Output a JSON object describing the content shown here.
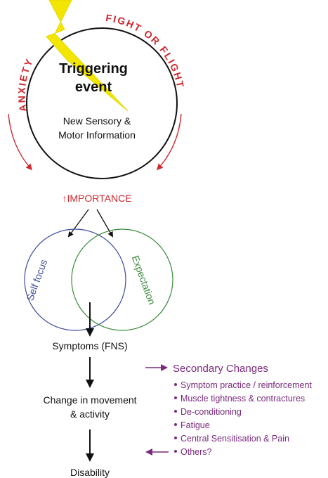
{
  "colors": {
    "black": "#111111",
    "red": "#d0282f",
    "yellow": "#f2e600",
    "blue": "#3d4b9a",
    "green": "#3a8a3a",
    "purple": "#7a2a7d"
  },
  "trigger": {
    "line1": "Triggering",
    "line2": "event",
    "sub1": "New Sensory &",
    "sub2": "Motor Information"
  },
  "arcs": {
    "left": "ANXIETY",
    "right": "FIGHT OR FLIGHT"
  },
  "importance": "↑IMPORTANCE",
  "venn": {
    "left": "Self focus",
    "right": "Expectation"
  },
  "flow": {
    "symptoms": "Symptoms (FNS)",
    "change1": "Change in movement",
    "change2": "& activity",
    "disability": "Disability"
  },
  "secondary": {
    "title": "Secondary Changes",
    "items": [
      "Symptom practice / reinforcement",
      "Muscle tightness & contractures",
      "De-conditioning",
      "Fatigue",
      "Central Sensitisation & Pain",
      "Others?"
    ]
  }
}
